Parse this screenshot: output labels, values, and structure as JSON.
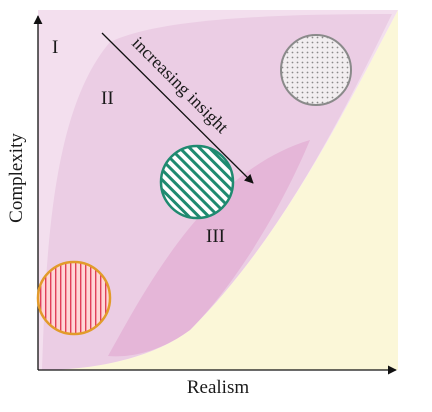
{
  "axes": {
    "x_label": "Realism",
    "y_label": "Complexity"
  },
  "regions": [
    {
      "id": "I",
      "label": "I",
      "color": "#f3dfee"
    },
    {
      "id": "II",
      "label": "II",
      "color": "#ebcde4"
    },
    {
      "id": "III",
      "label": "III",
      "color": "#e5b6d8"
    }
  ],
  "outside_region_color": "#fbf7d8",
  "arrow": {
    "label": "increasing insight",
    "color": "#111111"
  },
  "circles": [
    {
      "name": "dotted-circle",
      "pattern": "dots",
      "stroke": "#8a8a8a",
      "fill": "#f2eef0"
    },
    {
      "name": "green-hatched-circle",
      "pattern": "diagonal-hatch",
      "stroke": "#1f8a70",
      "fill": "#ffffff"
    },
    {
      "name": "red-striped-circle",
      "pattern": "vertical-stripes",
      "stroke": "#e29b2a",
      "fill": "#ffd6d6"
    }
  ]
}
